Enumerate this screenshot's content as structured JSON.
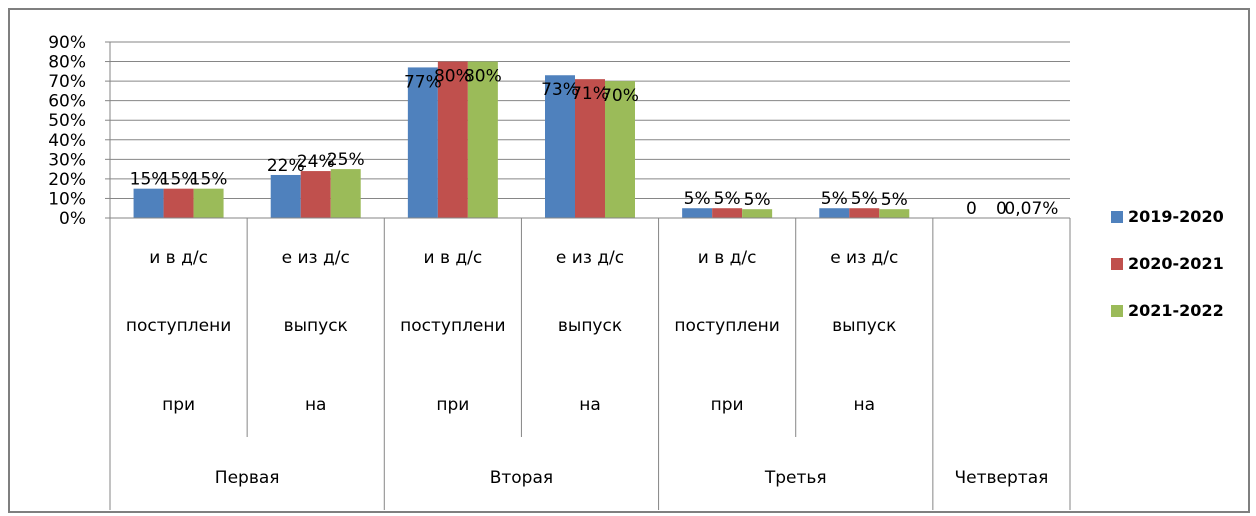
{
  "chart_data": {
    "type": "bar",
    "ylim": [
      0,
      0.9
    ],
    "yticks": [
      "0%",
      "10%",
      "20%",
      "30%",
      "40%",
      "50%",
      "60%",
      "70%",
      "80%",
      "90%"
    ],
    "categories": [
      {
        "group": "Первая",
        "lines": [
          "и в д/с",
          "поступлени",
          "при"
        ]
      },
      {
        "group": "Первая",
        "lines": [
          "е из д/с",
          "выпуск",
          "на"
        ]
      },
      {
        "group": "Вторая",
        "lines": [
          "и в д/с",
          "поступлени",
          "при"
        ]
      },
      {
        "group": "Вторая",
        "lines": [
          "е из д/с",
          "выпуск",
          "на"
        ]
      },
      {
        "group": "Третья",
        "lines": [
          "и в д/с",
          "поступлени",
          "при"
        ]
      },
      {
        "group": "Третья",
        "lines": [
          "е из д/с",
          "выпуск",
          "на"
        ]
      },
      {
        "group": "Четвертая",
        "lines": []
      }
    ],
    "groups": [
      "Первая",
      "Вторая",
      "Третья",
      "Четвертая"
    ],
    "series": [
      {
        "name": "2019-2020",
        "color": "#4f81bd",
        "values": [
          0.15,
          0.22,
          0.77,
          0.73,
          0.05,
          0.05,
          0
        ],
        "labels": [
          "15%",
          "22%",
          "77%",
          "73%",
          "5%",
          "5%",
          "0"
        ]
      },
      {
        "name": "2020-2021",
        "color": "#c0504d",
        "values": [
          0.15,
          0.24,
          0.8,
          0.71,
          0.05,
          0.05,
          0
        ],
        "labels": [
          "15%",
          "24%",
          "80%",
          "71%",
          "5%",
          "5%",
          "0"
        ]
      },
      {
        "name": "2021-2022",
        "color": "#9bbb59",
        "values": [
          0.15,
          0.25,
          0.8,
          0.7,
          0.045,
          0.045,
          0.0007
        ],
        "labels": [
          "15%",
          "25%",
          "80%",
          "70%",
          "5%",
          "5%",
          "0,07%"
        ]
      }
    ],
    "legend_position": "right",
    "grid": true
  }
}
